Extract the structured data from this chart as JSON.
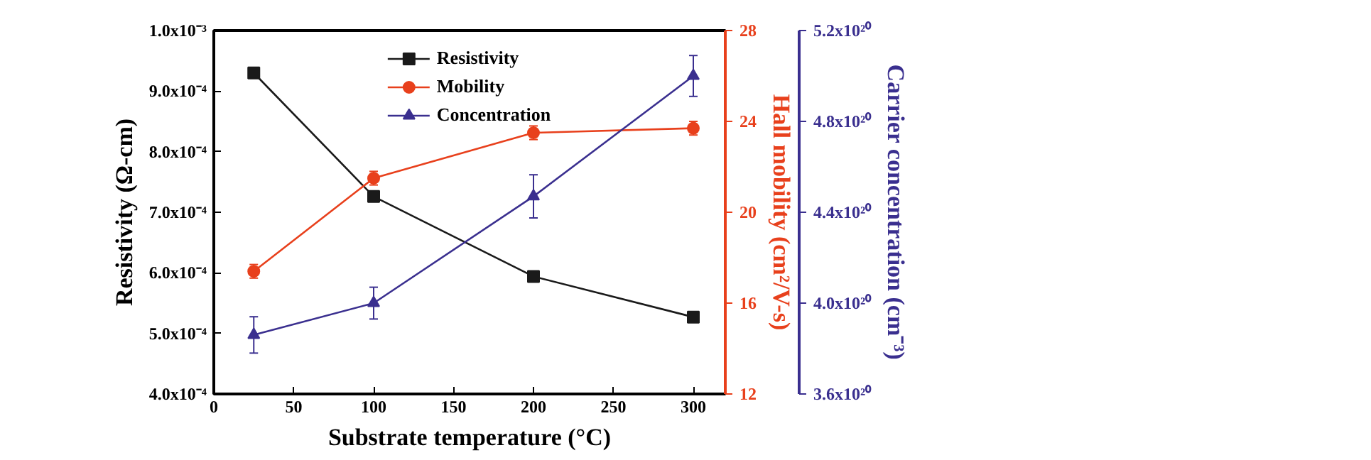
{
  "chart_data": {
    "type": "line",
    "xlabel": "Substrate temperature (°C)",
    "ylabel": "Resistivity (Ω-cm)",
    "y2label": "Hall mobility (cm²/V-s)",
    "y3label": "Carrier concentration (cm⁻³)",
    "x": [
      25,
      100,
      200,
      300
    ],
    "xlim": [
      0,
      320
    ],
    "xticks": [
      0,
      50,
      100,
      150,
      200,
      250,
      300
    ],
    "ylim": [
      0.0004,
      0.001
    ],
    "yticks": [
      {
        "value": 0.0004,
        "label": "4.0x10⁻⁴"
      },
      {
        "value": 0.0005,
        "label": "5.0x10⁻⁴"
      },
      {
        "value": 0.0006,
        "label": "6.0x10⁻⁴"
      },
      {
        "value": 0.0007,
        "label": "7.0x10⁻⁴"
      },
      {
        "value": 0.0008,
        "label": "8.0x10⁻⁴"
      },
      {
        "value": 0.0009,
        "label": "9.0x10⁻⁴"
      },
      {
        "value": 0.001,
        "label": "1.0x10⁻³"
      }
    ],
    "y2lim": [
      12,
      28
    ],
    "y2ticks": [
      12,
      16,
      20,
      24,
      28
    ],
    "y3lim": [
      3.6e+20,
      5.2e+20
    ],
    "y3ticks": [
      {
        "value": 3.6e+20,
        "label": "3.6x10²⁰"
      },
      {
        "value": 4e+20,
        "label": "4.0x10²⁰"
      },
      {
        "value": 4.4e+20,
        "label": "4.4x10²⁰"
      },
      {
        "value": 4.8e+20,
        "label": "4.8x10²⁰"
      },
      {
        "value": 5.2e+20,
        "label": "5.2x10²⁰"
      }
    ],
    "legend": "top",
    "grid": false,
    "line_style": "solid",
    "series": [
      {
        "name": "Resistivity",
        "color": "#1a1a1a",
        "marker": "square",
        "values": [
          0.00093,
          0.000726,
          0.000594,
          0.000527
        ],
        "errors": [
          1e-06,
          5e-07,
          5e-07,
          5e-07
        ]
      },
      {
        "name": "Mobility",
        "color": "#e8401c",
        "marker": "circle",
        "axis": "y2",
        "values": [
          17.4,
          21.5,
          23.5,
          23.7
        ],
        "errors": [
          0.3,
          0.3,
          0.3,
          0.3
        ]
      },
      {
        "name": "Concentration",
        "color": "#3a2f8f",
        "marker": "triangle",
        "axis": "y3",
        "values": [
          3.86e+20,
          4e+20,
          4.47e+20,
          5e+20
        ],
        "errors": [
          8e+18,
          7e+18,
          9.5e+18,
          9e+18
        ]
      }
    ]
  }
}
